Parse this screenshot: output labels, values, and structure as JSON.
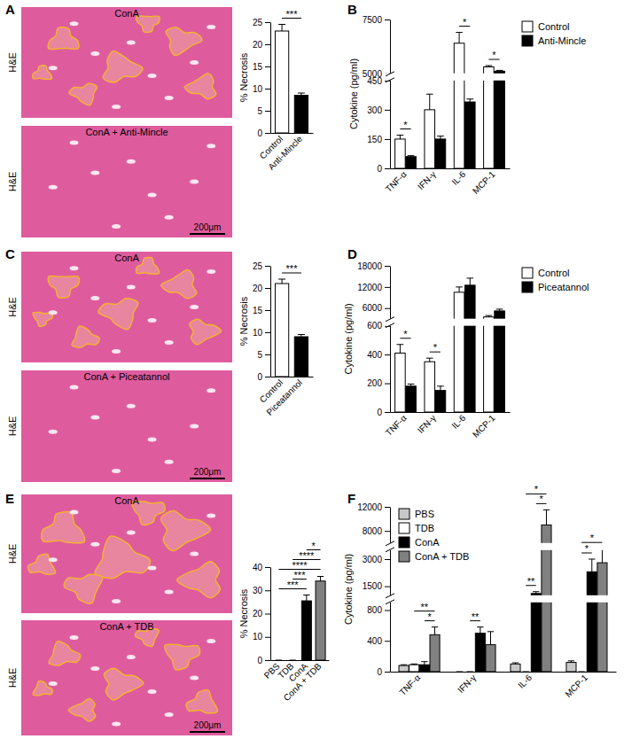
{
  "image_panels": [
    {
      "label": "A",
      "stain": "H&E",
      "images": [
        {
          "title": "ConA"
        },
        {
          "title": "ConA + Anti-Mincle",
          "scale_bar": "200μm"
        }
      ]
    },
    {
      "label": "C",
      "stain": "H&E",
      "images": [
        {
          "title": "ConA"
        },
        {
          "title": "ConA + Piceatannol",
          "scale_bar": "200μm"
        }
      ]
    },
    {
      "label": "E",
      "stain": "H&E",
      "images": [
        {
          "title": "ConA"
        },
        {
          "title": "ConA + TDB",
          "scale_bar": "200μm"
        }
      ]
    }
  ],
  "chart_data": [
    {
      "type": "bar",
      "ylabel": "% Necrosis",
      "categories": [
        "Control",
        "Anti-Mincle"
      ],
      "values": [
        23,
        8.5
      ],
      "errors": [
        1.5,
        0.5
      ],
      "colors": [
        "#ffffff",
        "#000000"
      ],
      "ylim": [
        0,
        25
      ],
      "yticks": [
        0,
        5,
        10,
        15,
        20,
        25
      ],
      "annotations": [
        {
          "text": "***",
          "between": [
            "Control",
            "Anti-Mincle"
          ]
        }
      ]
    },
    {
      "type": "bar",
      "panel": "B",
      "ylabel": "Cytokine (pg/ml)",
      "categories": [
        "TNF-α",
        "IFN-γ",
        "IL-6",
        "MCP-1"
      ],
      "series": [
        {
          "name": "Control",
          "color": "#ffffff",
          "values": [
            150,
            300,
            6400,
            5300
          ],
          "errors": [
            20,
            80,
            500,
            60
          ]
        },
        {
          "name": "Anti-Mincle",
          "color": "#000000",
          "values": [
            60,
            150,
            340,
            5100
          ],
          "errors": [
            5,
            15,
            15,
            40
          ]
        }
      ],
      "ylim": [
        [
          0,
          450
        ],
        [
          5000,
          7500
        ]
      ],
      "yticks": [
        [
          0,
          150,
          300,
          450
        ],
        [
          5000,
          7500
        ]
      ],
      "legend": "right",
      "annotations": [
        {
          "text": "*",
          "category": "TNF-α",
          "between": [
            "Control",
            "Anti-Mincle"
          ]
        },
        {
          "text": "*",
          "category": "IL-6",
          "between": [
            "Control",
            "Anti-Mincle"
          ]
        },
        {
          "text": "*",
          "category": "MCP-1",
          "between": [
            "Control",
            "Anti-Mincle"
          ]
        }
      ]
    },
    {
      "type": "bar",
      "ylabel": "% Necrosis",
      "categories": [
        "Control",
        "Piceatannol"
      ],
      "values": [
        21,
        9
      ],
      "errors": [
        1,
        0.5
      ],
      "colors": [
        "#ffffff",
        "#000000"
      ],
      "ylim": [
        0,
        25
      ],
      "yticks": [
        0,
        5,
        10,
        15,
        20,
        25
      ],
      "annotations": [
        {
          "text": "***",
          "between": [
            "Control",
            "Piceatannol"
          ]
        }
      ]
    },
    {
      "type": "bar",
      "panel": "D",
      "ylabel": "Cytokine (pg/ml)",
      "categories": [
        "TNF-α",
        "IFN-γ",
        "IL-6",
        "MCP-1"
      ],
      "series": [
        {
          "name": "Control",
          "color": "#ffffff",
          "values": [
            410,
            350,
            10500,
            3500
          ],
          "errors": [
            60,
            25,
            1500,
            400
          ]
        },
        {
          "name": "Piceatannol",
          "color": "#000000",
          "values": [
            180,
            150,
            12500,
            5200
          ],
          "errors": [
            15,
            30,
            2000,
            500
          ]
        }
      ],
      "ylim": [
        [
          0,
          600
        ],
        [
          3000,
          18000
        ]
      ],
      "yticks": [
        [
          0,
          200,
          400,
          600
        ],
        [
          6000,
          12000,
          18000
        ]
      ],
      "legend": "right",
      "annotations": [
        {
          "text": "*",
          "category": "TNF-α",
          "between": [
            "Control",
            "Piceatannol"
          ]
        },
        {
          "text": "*",
          "category": "IFN-γ",
          "between": [
            "Control",
            "Piceatannol"
          ]
        }
      ]
    },
    {
      "type": "bar",
      "ylabel": "% Necrosis",
      "categories": [
        "PBS",
        "TDB",
        "ConA",
        "ConA + TDB"
      ],
      "values": [
        0,
        0,
        25.5,
        34
      ],
      "errors": [
        0,
        0,
        2.5,
        2
      ],
      "colors": [
        "#c8c8c8",
        "#ffffff",
        "#000000",
        "#808080"
      ],
      "ylim": [
        0,
        40
      ],
      "yticks": [
        0,
        10,
        20,
        30,
        40
      ],
      "annotations": [
        {
          "text": "***",
          "between": [
            "PBS",
            "ConA"
          ]
        },
        {
          "text": "***",
          "between": [
            "TDB",
            "ConA"
          ]
        },
        {
          "text": "****",
          "between": [
            "PBS",
            "ConA + TDB"
          ]
        },
        {
          "text": "****",
          "between": [
            "TDB",
            "ConA + TDB"
          ]
        },
        {
          "text": "*",
          "between": [
            "ConA",
            "ConA + TDB"
          ]
        }
      ]
    },
    {
      "type": "bar",
      "panel": "F",
      "ylabel": "Cytokine (pg/ml)",
      "categories": [
        "TNF-α",
        "IFN-γ",
        "IL-6",
        "MCP-1"
      ],
      "series": [
        {
          "name": "PBS",
          "color": "#c8c8c8",
          "values": [
            80,
            0,
            100,
            120
          ],
          "errors": [
            10,
            0,
            15,
            20
          ]
        },
        {
          "name": "TDB",
          "color": "#ffffff",
          "values": [
            90,
            0,
            0,
            0
          ],
          "errors": [
            10,
            0,
            0,
            0
          ]
        },
        {
          "name": "ConA",
          "color": "#000000",
          "values": [
            90,
            500,
            1100,
            2300
          ],
          "errors": [
            40,
            80,
            100,
            700
          ]
        },
        {
          "name": "ConA + TDB",
          "color": "#808080",
          "values": [
            480,
            350,
            9000,
            2800
          ],
          "errors": [
            100,
            170,
            2500,
            1200
          ]
        }
      ],
      "ylim": [
        [
          0,
          900
        ],
        [
          1000,
          3500
        ],
        [
          6000,
          12000
        ]
      ],
      "yticks": [
        [
          0,
          400,
          800
        ],
        [
          1500,
          3000
        ],
        [
          8000,
          12000
        ]
      ],
      "legend": "upper left",
      "annotations": [
        {
          "text": "*",
          "category": "TNF-α",
          "between": [
            "ConA",
            "ConA + TDB"
          ]
        },
        {
          "text": "**",
          "category": "TNF-α",
          "between": [
            "TDB",
            "ConA + TDB"
          ]
        },
        {
          "text": "**",
          "category": "IFN-γ",
          "between": [
            "TDB",
            "ConA"
          ]
        },
        {
          "text": "**",
          "category": "IL-6",
          "between": [
            "TDB",
            "ConA"
          ]
        },
        {
          "text": "*",
          "category": "IL-6",
          "between": [
            "ConA",
            "ConA + TDB"
          ]
        },
        {
          "text": "*",
          "category": "IL-6",
          "between": [
            "TDB",
            "ConA + TDB"
          ]
        },
        {
          "text": "*",
          "category": "MCP-1",
          "between": [
            "TDB",
            "ConA"
          ]
        },
        {
          "text": "*",
          "category": "MCP-1",
          "between": [
            "TDB",
            "ConA + TDB"
          ]
        }
      ]
    }
  ]
}
